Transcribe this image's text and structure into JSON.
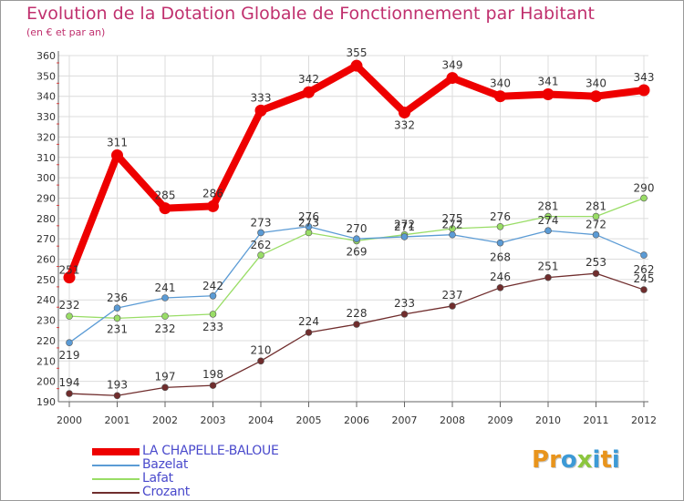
{
  "title": "Evolution de la Dotation Globale de Fonctionnement par Habitant",
  "subtitle": "(en € et par an)",
  "logo": {
    "letters": [
      "P",
      "r",
      "o",
      "x",
      "i",
      "t",
      "i"
    ],
    "colors": [
      "#e8941c",
      "#e8941c",
      "#3d9ad6",
      "#8cc63e",
      "#3d9ad6",
      "#e8941c",
      "#3d9ad6"
    ]
  },
  "chart_data": {
    "type": "line",
    "title": "Evolution de la Dotation Globale de Fonctionnement par Habitant",
    "subtitle": "(en € et par an)",
    "xlabel": "",
    "ylabel": "",
    "categories": [
      "2000",
      "2001",
      "2002",
      "2003",
      "2004",
      "2005",
      "2006",
      "2007",
      "2008",
      "2009",
      "2010",
      "2011",
      "2012"
    ],
    "ylim": [
      190,
      360
    ],
    "yticks": [
      190,
      200,
      210,
      220,
      230,
      240,
      250,
      260,
      270,
      280,
      290,
      300,
      310,
      320,
      330,
      340,
      350,
      360
    ],
    "grid": true,
    "legend_position": "bottom-left",
    "series": [
      {
        "name": "LA CHAPELLE-BALOUE",
        "color": "#ee0000",
        "values": [
          251,
          311,
          285,
          286,
          333,
          342,
          355,
          332,
          349,
          340,
          341,
          340,
          343
        ]
      },
      {
        "name": "Bazelat",
        "color": "#5b9bd5",
        "values": [
          219,
          236,
          241,
          242,
          273,
          276,
          270,
          271,
          272,
          268,
          274,
          272,
          262
        ]
      },
      {
        "name": "Lafat",
        "color": "#99dd66",
        "values": [
          232,
          231,
          232,
          233,
          262,
          273,
          269,
          272,
          275,
          276,
          281,
          281,
          290
        ]
      },
      {
        "name": "Crozant",
        "color": "#702d2d",
        "values": [
          194,
          193,
          197,
          198,
          210,
          224,
          228,
          233,
          237,
          246,
          251,
          253,
          245
        ]
      }
    ]
  }
}
